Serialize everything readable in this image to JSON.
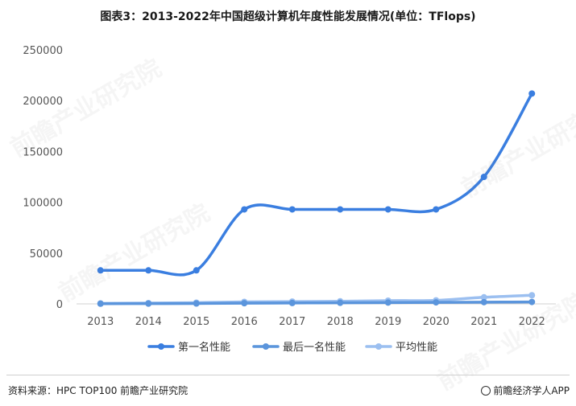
{
  "title": "图表3：2013-2022年中国超级计算机年度性能发展情况(单位：TFlops)",
  "source": "资料来源：HPC TOP100 前瞻产业研究院",
  "brand": "前瞻经济学人APP",
  "watermark": "前瞻产业研究院",
  "chart_data": {
    "type": "line",
    "categories": [
      "2013",
      "2014",
      "2015",
      "2016",
      "2017",
      "2018",
      "2019",
      "2020",
      "2021",
      "2022"
    ],
    "ylim": [
      0,
      250000
    ],
    "yticks": [
      "0",
      "50000",
      "100000",
      "150000",
      "200000",
      "250000"
    ],
    "grid": false,
    "legend_position": "bottom",
    "series": [
      {
        "name": "第一名性能",
        "color": "#3a7ee0",
        "values": [
          33000,
          33000,
          33000,
          93000,
          93000,
          93000,
          93000,
          93000,
          125000,
          207000
        ]
      },
      {
        "name": "最后一名性能",
        "color": "#5b95dc",
        "values": [
          200,
          300,
          400,
          700,
          900,
          1100,
          1300,
          1500,
          1700,
          1900
        ]
      },
      {
        "name": "平均性能",
        "color": "#9bbff0",
        "values": [
          500,
          800,
          1200,
          2000,
          2300,
          2600,
          3200,
          3500,
          6500,
          8500
        ]
      }
    ]
  }
}
